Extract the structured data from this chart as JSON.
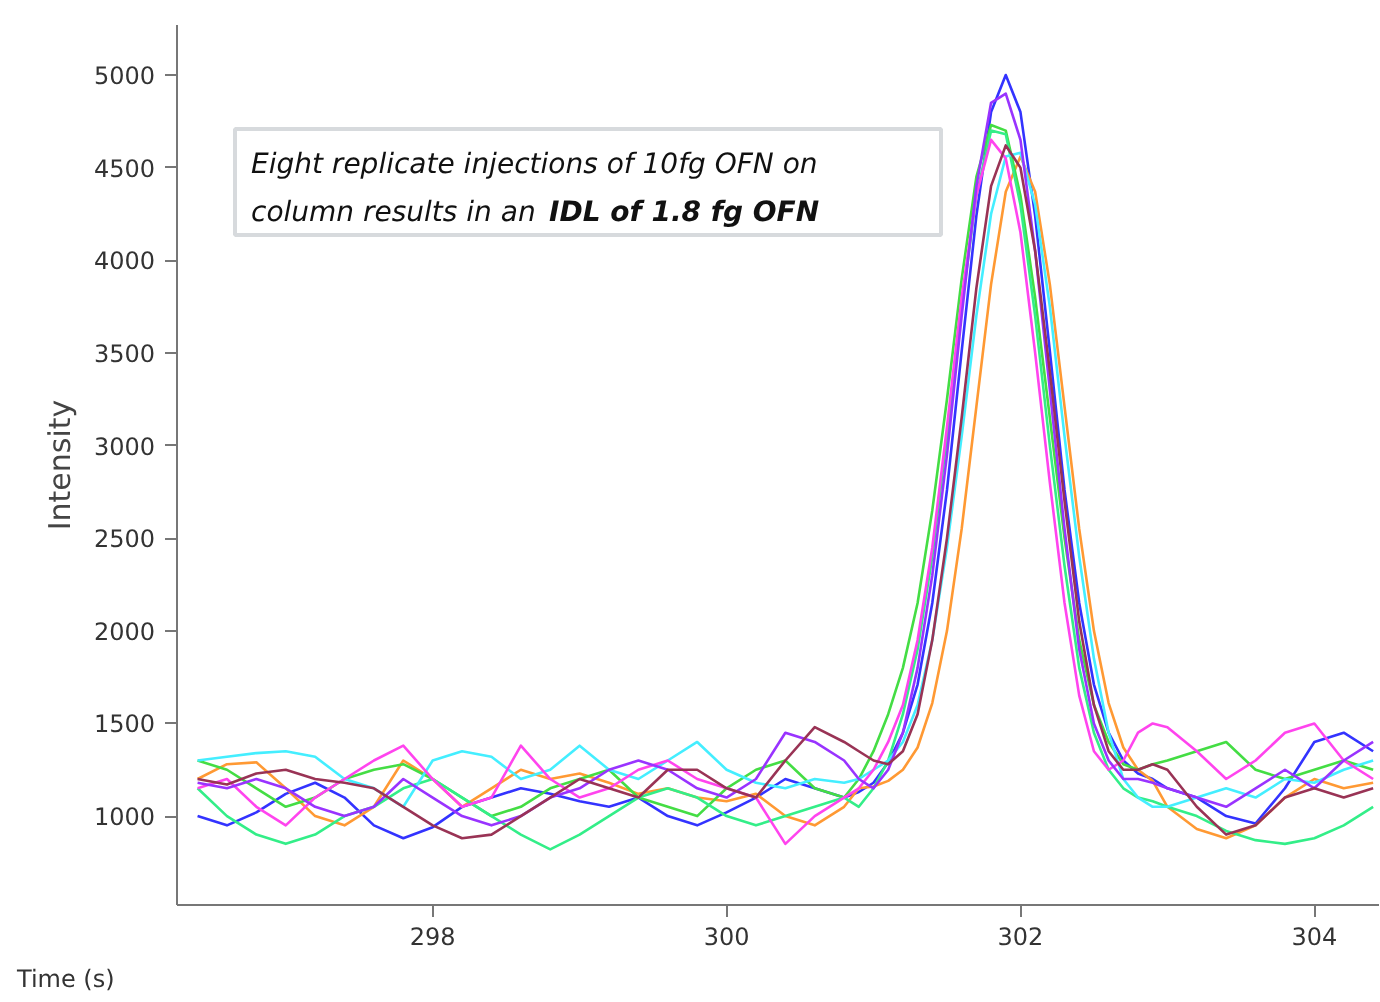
{
  "chart_data": {
    "type": "line",
    "xlabel": "Time (s)",
    "ylabel": "Intensity",
    "annotations": [
      "Eight replicate injections of 10fg OFN on",
      "column results in an",
      "IDL of 1.8 fg OFN"
    ],
    "x": [
      296.4,
      296.6,
      296.8,
      297.0,
      297.2,
      297.4,
      297.6,
      297.8,
      298.0,
      298.2,
      298.4,
      298.6,
      298.8,
      299.0,
      299.2,
      299.4,
      299.6,
      299.8,
      300.0,
      300.2,
      300.4,
      300.6,
      300.8,
      300.9,
      301.0,
      301.1,
      301.2,
      301.3,
      301.4,
      301.5,
      301.6,
      301.7,
      301.8,
      301.9,
      302.0,
      302.1,
      302.2,
      302.3,
      302.4,
      302.5,
      302.6,
      302.7,
      302.8,
      302.9,
      303.0,
      303.2,
      303.4,
      303.6,
      303.8,
      304.0,
      304.2,
      304.4
    ],
    "series": [
      {
        "color": "#3333ff",
        "values": [
          1000,
          950,
          1020,
          1120,
          1180,
          1100,
          950,
          880,
          940,
          1050,
          1100,
          1150,
          1120,
          1080,
          1050,
          1100,
          1000,
          950,
          1020,
          1100,
          1200,
          1150,
          1100,
          1130,
          1180,
          1290,
          1450,
          1710,
          2150,
          2760,
          3510,
          4240,
          4800,
          5000,
          4800,
          4240,
          3510,
          2760,
          2150,
          1710,
          1450,
          1300,
          1230,
          1200,
          1150,
          1100,
          1000,
          960,
          1150,
          1400,
          1450,
          1350
        ]
      },
      {
        "color": "#ff9933",
        "values": [
          1200,
          1280,
          1290,
          1150,
          1000,
          950,
          1050,
          1300,
          1200,
          1050,
          1150,
          1250,
          1200,
          1230,
          1180,
          1120,
          1150,
          1100,
          1080,
          1120,
          1000,
          950,
          1050,
          1150,
          1160,
          1190,
          1250,
          1370,
          1610,
          2000,
          2550,
          3210,
          3870,
          4370,
          4560,
          4370,
          3870,
          3210,
          2550,
          2000,
          1610,
          1370,
          1250,
          1190,
          1050,
          930,
          880,
          950,
          1100,
          1200,
          1150,
          1180
        ]
      },
      {
        "color": "#44dd44",
        "values": [
          1300,
          1250,
          1150,
          1050,
          1100,
          1200,
          1250,
          1280,
          1200,
          1100,
          1000,
          1050,
          1150,
          1200,
          1250,
          1100,
          1050,
          1000,
          1150,
          1250,
          1300,
          1150,
          1100,
          1200,
          1350,
          1550,
          1800,
          2150,
          2650,
          3250,
          3900,
          4450,
          4730,
          4700,
          4350,
          3800,
          3150,
          2500,
          1950,
          1600,
          1400,
          1280,
          1250,
          1280,
          1300,
          1350,
          1400,
          1250,
          1200,
          1250,
          1300,
          1250
        ]
      },
      {
        "color": "#33ee88",
        "values": [
          1150,
          1000,
          900,
          850,
          900,
          1000,
          1050,
          1150,
          1200,
          1100,
          1000,
          900,
          820,
          900,
          1000,
          1100,
          1150,
          1100,
          1000,
          950,
          1000,
          1050,
          1100,
          1050,
          1150,
          1300,
          1550,
          1900,
          2400,
          3050,
          3750,
          4350,
          4700,
          4680,
          4300,
          3700,
          3000,
          2350,
          1800,
          1450,
          1250,
          1150,
          1100,
          1080,
          1050,
          1000,
          920,
          870,
          850,
          880,
          950,
          1050
        ]
      },
      {
        "color": "#44eeff",
        "values": [
          1300,
          1320,
          1340,
          1350,
          1320,
          1200,
          1150,
          1050,
          1300,
          1350,
          1320,
          1200,
          1250,
          1380,
          1250,
          1200,
          1300,
          1400,
          1250,
          1180,
          1150,
          1200,
          1180,
          1200,
          1250,
          1300,
          1400,
          1600,
          1950,
          2450,
          3050,
          3700,
          4250,
          4560,
          4580,
          4300,
          3750,
          3050,
          2400,
          1850,
          1450,
          1200,
          1100,
          1050,
          1050,
          1100,
          1150,
          1100,
          1200,
          1180,
          1250,
          1300
        ]
      },
      {
        "color": "#ff44ee",
        "values": [
          1150,
          1200,
          1050,
          950,
          1100,
          1200,
          1300,
          1380,
          1200,
          1050,
          1100,
          1380,
          1200,
          1100,
          1150,
          1250,
          1300,
          1200,
          1150,
          1100,
          850,
          1000,
          1100,
          1150,
          1250,
          1400,
          1600,
          1950,
          2450,
          3100,
          3800,
          4350,
          4650,
          4550,
          4150,
          3500,
          2800,
          2150,
          1650,
          1350,
          1250,
          1300,
          1450,
          1500,
          1480,
          1350,
          1200,
          1300,
          1450,
          1500,
          1300,
          1200
        ]
      },
      {
        "color": "#9933ff",
        "values": [
          1180,
          1150,
          1200,
          1150,
          1050,
          1000,
          1050,
          1200,
          1100,
          1000,
          950,
          1000,
          1100,
          1150,
          1250,
          1300,
          1250,
          1150,
          1100,
          1200,
          1450,
          1400,
          1300,
          1200,
          1150,
          1250,
          1450,
          1800,
          2300,
          2950,
          3700,
          4400,
          4850,
          4900,
          4650,
          4050,
          3300,
          2550,
          1900,
          1500,
          1300,
          1200,
          1200,
          1180,
          1150,
          1100,
          1050,
          1150,
          1250,
          1150,
          1300,
          1400
        ]
      },
      {
        "color": "#993355",
        "values": [
          1200,
          1170,
          1230,
          1250,
          1200,
          1180,
          1150,
          1050,
          950,
          880,
          900,
          1000,
          1100,
          1200,
          1150,
          1100,
          1250,
          1250,
          1150,
          1100,
          1300,
          1480,
          1400,
          1350,
          1300,
          1280,
          1350,
          1550,
          1950,
          2500,
          3150,
          3850,
          4400,
          4620,
          4500,
          4050,
          3400,
          2700,
          2050,
          1600,
          1350,
          1250,
          1250,
          1280,
          1250,
          1050,
          900,
          950,
          1100,
          1150,
          1100,
          1150
        ]
      }
    ],
    "xlim": [
      296.26,
      304.44
    ],
    "ylim": [
      520,
      5270
    ],
    "xticks": [
      298,
      300,
      302,
      304
    ],
    "yticks": [
      1000,
      1500,
      2000,
      2500,
      3000,
      3500,
      4000,
      4500,
      5000
    ],
    "grid": false,
    "marker": "none",
    "line_style": "solid"
  }
}
